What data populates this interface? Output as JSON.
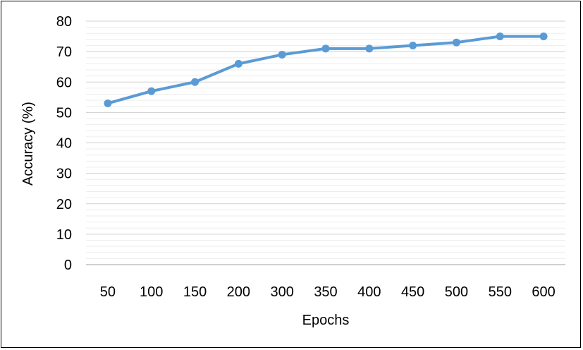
{
  "chart_data": {
    "type": "line",
    "title": "",
    "xlabel": "Epochs",
    "ylabel": "Accuracy (%)",
    "categories": [
      "50",
      "100",
      "150",
      "200",
      "300",
      "350",
      "400",
      "450",
      "500",
      "550",
      "600"
    ],
    "series": [
      {
        "values": [
          53,
          57,
          60,
          66,
          69,
          71,
          71,
          72,
          73,
          75,
          75
        ]
      }
    ],
    "yticks": [
      "0",
      "10",
      "20",
      "30",
      "40",
      "50",
      "60",
      "70",
      "80"
    ],
    "ylim": [
      0,
      80
    ],
    "grid": true,
    "legend": "none",
    "colors": {
      "line": "#5b9bd5",
      "grid": "#d9d9d9",
      "axis": "#bfbfbf"
    }
  }
}
